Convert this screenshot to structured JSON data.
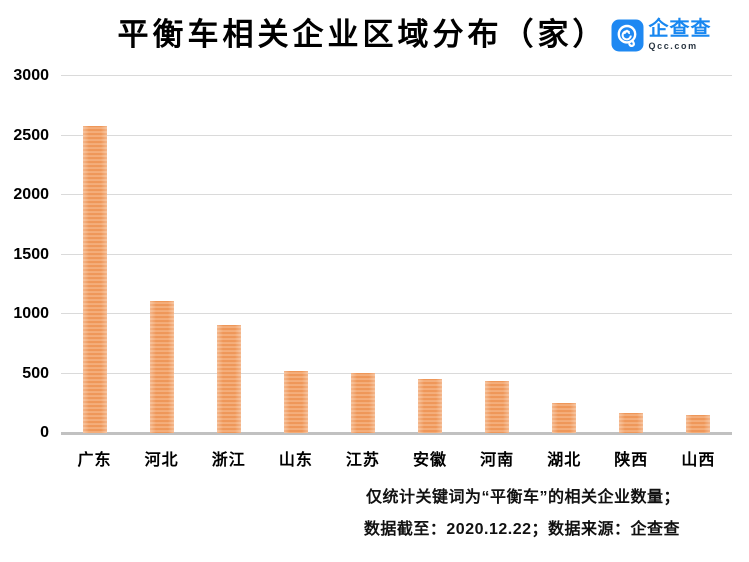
{
  "title": "平衡车相关企业区域分布（家）",
  "logo": {
    "name": "企查查",
    "domain": "Qcc.com",
    "brand_color": "#1e88f2",
    "icon": "qcc-magnifier-icon"
  },
  "footnote": {
    "line1": "仅统计关键词为“平衡车”的相关企业数量；",
    "line2": "数据截至：2020.12.22；数据来源：企查查"
  },
  "colors": {
    "bar_stripe_dark": "#ed8f4e",
    "bar_stripe_light": "#f9c59d",
    "gridline": "#dadada",
    "axis_baseline": "#c1c1c1",
    "text": "#000000",
    "logo_blue": "#1e88f2"
  },
  "chart_data": {
    "type": "bar",
    "title": "平衡车相关企业区域分布（家）",
    "categories": [
      "广东",
      "河北",
      "浙江",
      "山东",
      "江苏",
      "安徽",
      "河南",
      "湖北",
      "陕西",
      "山西"
    ],
    "values": [
      2580,
      1110,
      910,
      520,
      505,
      455,
      435,
      250,
      170,
      155
    ],
    "xlabel": "",
    "ylabel": "",
    "ylim": [
      0,
      3000
    ],
    "yticks": [
      0,
      500,
      1000,
      1500,
      2000,
      2500,
      3000
    ],
    "grid": "horizontal",
    "legend_position": "none"
  }
}
